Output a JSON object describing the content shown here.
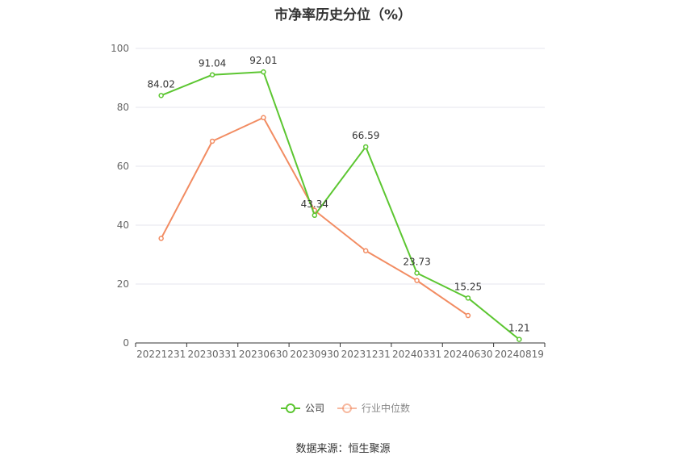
{
  "chart_data": {
    "type": "line",
    "title": "市净率历史分位（%）",
    "xlabel": "",
    "ylabel": "",
    "ylim": [
      0,
      100
    ],
    "yticks": [
      0,
      20,
      40,
      60,
      80,
      100
    ],
    "categories": [
      "20221231",
      "20230331",
      "20230630",
      "20230930",
      "20231231",
      "20240331",
      "20240630",
      "20240819"
    ],
    "series": [
      {
        "name": "公司",
        "color": "#5cc631",
        "values": [
          84.02,
          91.04,
          92.01,
          43.34,
          66.59,
          23.73,
          15.25,
          1.21
        ],
        "labels": [
          "84.02",
          "91.04",
          "92.01",
          "43.34",
          "66.59",
          "23.73",
          "15.25",
          "1.21"
        ]
      },
      {
        "name": "行业中位数",
        "color": "#f28c62",
        "values": [
          35.5,
          68.5,
          76.5,
          45.0,
          31.3,
          21.2,
          9.3,
          null
        ]
      }
    ],
    "legend_position": "bottom",
    "grid": true
  },
  "footer": {
    "source": "数据来源：恒生聚源"
  }
}
